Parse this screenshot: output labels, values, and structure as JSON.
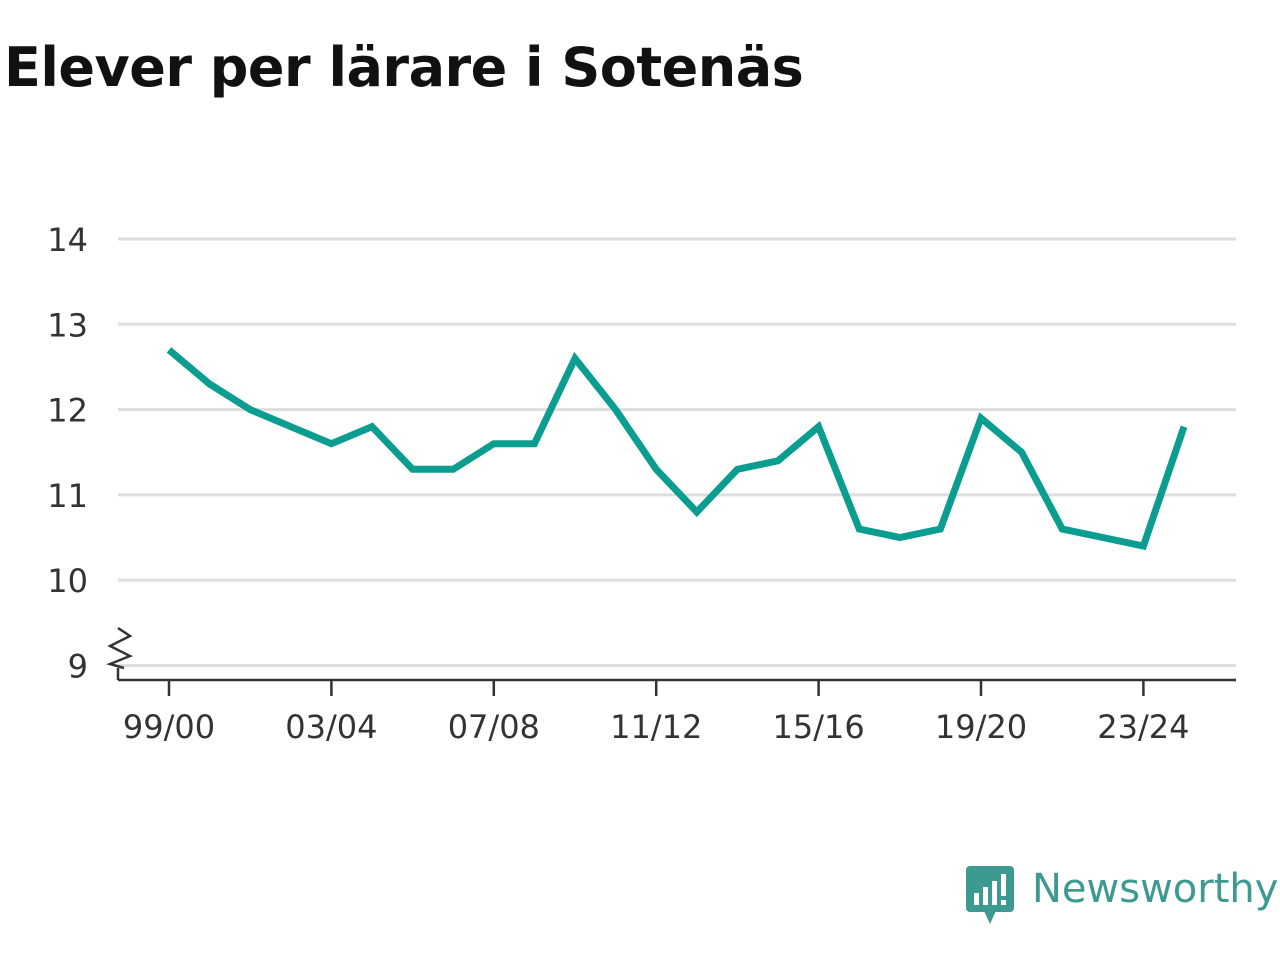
{
  "chart_data": {
    "type": "line",
    "title": "Elever per lärare i Sotenäs",
    "xlabel": "",
    "ylabel": "",
    "x_tick_labels": [
      "99/00",
      "03/04",
      "07/08",
      "11/12",
      "15/16",
      "19/20",
      "23/24"
    ],
    "x_tick_indices": [
      0,
      4,
      8,
      12,
      16,
      20,
      24
    ],
    "y_ticks": [
      9,
      10,
      11,
      12,
      13,
      14
    ],
    "ylim": [
      9,
      14
    ],
    "axis_break": true,
    "grid": true,
    "series": [
      {
        "values": [
          12.7,
          12.3,
          12.0,
          11.8,
          11.6,
          11.8,
          11.3,
          11.3,
          11.6,
          11.6,
          12.6,
          12.0,
          11.3,
          10.8,
          11.3,
          11.4,
          11.8,
          10.6,
          10.5,
          10.6,
          11.9,
          11.5,
          10.6,
          10.5,
          10.4,
          11.8
        ]
      }
    ]
  },
  "colors": {
    "line": "#0a9d90",
    "grid": "#dedede",
    "axis": "#333333",
    "brand": "#3c9a90"
  },
  "brand": {
    "name": "Newsworthy",
    "icon": "newsworthy-logo-icon"
  }
}
